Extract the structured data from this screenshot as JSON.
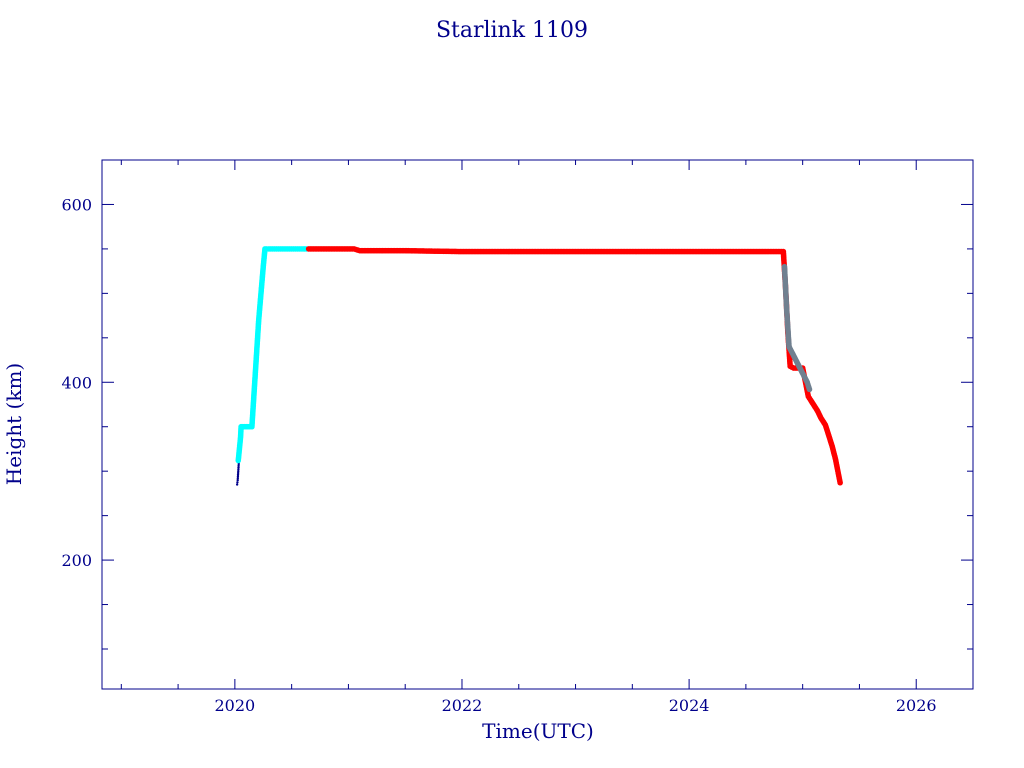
{
  "chart_data": {
    "type": "scatter",
    "title": "Starlink 1109",
    "xlabel": "Time(UTC)",
    "ylabel": "Height (km)",
    "xlim": [
      2018.83,
      2026.5
    ],
    "ylim": [
      55,
      650
    ],
    "x_major_ticks": [
      2020,
      2022,
      2024,
      2026
    ],
    "x_major_tick_labels": [
      "2020",
      "2022",
      "2024",
      "2026"
    ],
    "x_minor_step": 0.5,
    "y_major_ticks": [
      200,
      400,
      600
    ],
    "y_major_tick_labels": [
      "200",
      "400",
      "600"
    ],
    "y_minor_step": 50,
    "grid": false,
    "colors": {
      "axis": "#00008b",
      "dark_blue": "#00008b",
      "cyan": "#00ffff",
      "red": "#ff0000",
      "grey": "#708090"
    },
    "series": [
      {
        "color": "#00008b",
        "x": [
          2020.02,
          2020.025,
          2020.03,
          2020.035
        ],
        "y": [
          285,
          290,
          300,
          310
        ]
      },
      {
        "color": "#00ffff",
        "x": [
          2020.03,
          2020.04,
          2020.05,
          2020.055,
          2020.07,
          2020.1,
          2020.13,
          2020.15,
          2020.17,
          2020.19,
          2020.21,
          2020.23,
          2020.25,
          2020.265,
          2020.28,
          2020.3,
          2020.35,
          2020.4,
          2020.45,
          2020.5,
          2020.55,
          2020.6,
          2020.63
        ],
        "y": [
          312,
          325,
          338,
          350,
          350,
          350,
          350,
          350,
          390,
          430,
          470,
          500,
          530,
          550,
          550,
          550,
          550,
          550,
          550,
          550,
          550,
          550,
          550
        ]
      },
      {
        "color": "#ff0000",
        "x": [
          2020.65,
          2020.75,
          2020.85,
          2020.95,
          2021.05,
          2021.1,
          2021.5,
          2022.0,
          2022.5,
          2023.0,
          2023.5,
          2024.0,
          2024.5,
          2024.7,
          2024.8,
          2024.83,
          2024.85,
          2024.87,
          2024.89,
          2024.92,
          2024.95,
          2025.0,
          2025.05,
          2025.07,
          2025.1,
          2025.13,
          2025.16,
          2025.2,
          2025.23,
          2025.26,
          2025.29,
          2025.31,
          2025.33
        ],
        "y": [
          550,
          550,
          550,
          550,
          550,
          548,
          548,
          547,
          547,
          547,
          547,
          547,
          547,
          547,
          547,
          547,
          505,
          455,
          418,
          416,
          416,
          416,
          384,
          380,
          374,
          368,
          360,
          352,
          340,
          328,
          313,
          300,
          287
        ]
      },
      {
        "color": "#708090",
        "x": [
          2024.84,
          2024.86,
          2024.88,
          2025.04,
          2025.06
        ],
        "y": [
          530,
          480,
          440,
          400,
          392
        ]
      }
    ]
  }
}
